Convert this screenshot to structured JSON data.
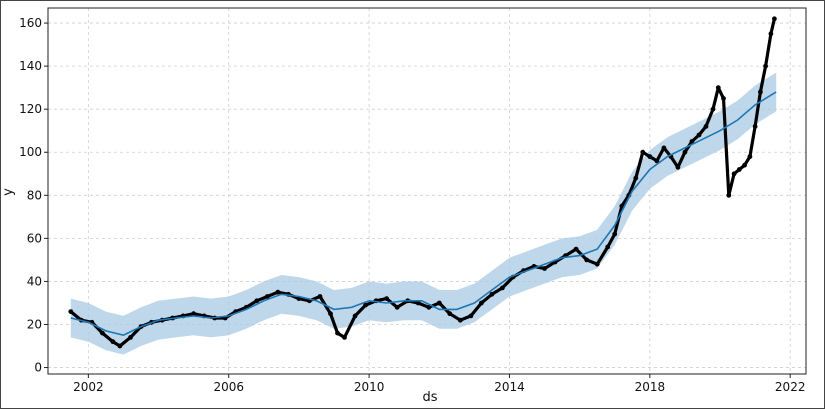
{
  "chart_data": {
    "type": "line",
    "title": "",
    "xlabel": "ds",
    "ylabel": "y",
    "xlim": [
      2000.85,
      2022.45
    ],
    "ylim": [
      -3,
      167
    ],
    "x_ticks": [
      2002,
      2006,
      2010,
      2014,
      2018,
      2022
    ],
    "x_tick_labels": [
      "2002",
      "2006",
      "2010",
      "2014",
      "2018",
      "2022"
    ],
    "y_ticks": [
      0,
      20,
      40,
      60,
      80,
      100,
      120,
      140,
      160
    ],
    "y_tick_labels": [
      "0",
      "20",
      "40",
      "60",
      "80",
      "100",
      "120",
      "140",
      "160"
    ],
    "grid": true,
    "legend": "none",
    "colors": {
      "forecast_line": "#1f77b4",
      "uncertainty_band": "#a9c9e3",
      "observed_points": "#000000",
      "grid": "#cfcfcf"
    },
    "series": [
      {
        "kind": "forecast",
        "x": [
          2001.5,
          2002.0,
          2002.5,
          2003.0,
          2003.5,
          2004.0,
          2004.5,
          2005.0,
          2005.5,
          2006.0,
          2006.5,
          2007.0,
          2007.5,
          2008.0,
          2008.5,
          2009.0,
          2009.5,
          2010.0,
          2010.5,
          2011.0,
          2011.5,
          2012.0,
          2012.5,
          2013.0,
          2013.5,
          2014.0,
          2014.5,
          2015.0,
          2015.5,
          2016.0,
          2016.5,
          2017.0,
          2017.5,
          2018.0,
          2018.5,
          2019.0,
          2019.5,
          2020.0,
          2020.5,
          2021.0,
          2021.5,
          2021.6
        ],
        "yhat": [
          23,
          21,
          17,
          15,
          19,
          22,
          23,
          24,
          23,
          24,
          27,
          31,
          34,
          33,
          31,
          27,
          28,
          31,
          30,
          31,
          31,
          27,
          27,
          30,
          36,
          42,
          45,
          48,
          51,
          52,
          55,
          66,
          82,
          92,
          98,
          102,
          106,
          110,
          115,
          122,
          127,
          128
        ],
        "lower": [
          14,
          12,
          8,
          6,
          10,
          13,
          14,
          15,
          14,
          15,
          18,
          22,
          25,
          24,
          22,
          18,
          19,
          22,
          21,
          22,
          22,
          18,
          18,
          21,
          27,
          33,
          36,
          39,
          42,
          43,
          46,
          57,
          73,
          83,
          89,
          93,
          97,
          101,
          106,
          113,
          118,
          119
        ],
        "upper": [
          32,
          30,
          26,
          24,
          28,
          31,
          32,
          33,
          32,
          33,
          36,
          40,
          43,
          42,
          40,
          36,
          37,
          40,
          39,
          40,
          40,
          36,
          36,
          39,
          45,
          51,
          54,
          57,
          60,
          61,
          64,
          75,
          91,
          101,
          107,
          111,
          115,
          119,
          124,
          131,
          136,
          137
        ]
      },
      {
        "kind": "observed",
        "x": [
          2001.5,
          2001.8,
          2002.1,
          2002.4,
          2002.7,
          2002.9,
          2003.2,
          2003.5,
          2003.8,
          2004.1,
          2004.4,
          2004.7,
          2005.0,
          2005.3,
          2005.6,
          2005.9,
          2006.2,
          2006.5,
          2006.8,
          2007.1,
          2007.4,
          2007.7,
          2008.0,
          2008.3,
          2008.6,
          2008.9,
          2009.1,
          2009.3,
          2009.6,
          2009.9,
          2010.2,
          2010.5,
          2010.8,
          2011.1,
          2011.4,
          2011.7,
          2012.0,
          2012.3,
          2012.6,
          2012.9,
          2013.2,
          2013.5,
          2013.8,
          2014.1,
          2014.4,
          2014.7,
          2015.0,
          2015.3,
          2015.6,
          2015.9,
          2016.2,
          2016.5,
          2016.8,
          2017.0,
          2017.2,
          2017.4,
          2017.6,
          2017.8,
          2018.0,
          2018.2,
          2018.4,
          2018.6,
          2018.8,
          2019.0,
          2019.2,
          2019.4,
          2019.6,
          2019.8,
          2019.95,
          2020.1,
          2020.25,
          2020.4,
          2020.55,
          2020.7,
          2020.85,
          2021.0,
          2021.15,
          2021.3,
          2021.45,
          2021.55
        ],
        "y": [
          26,
          22,
          21,
          16,
          12,
          10,
          14,
          19,
          21,
          22,
          23,
          24,
          25,
          24,
          23,
          23,
          26,
          28,
          31,
          33,
          35,
          34,
          32,
          31,
          33,
          25,
          16,
          14,
          24,
          29,
          31,
          32,
          28,
          31,
          30,
          28,
          30,
          25,
          22,
          24,
          30,
          34,
          37,
          42,
          45,
          47,
          46,
          49,
          52,
          55,
          50,
          48,
          56,
          62,
          75,
          80,
          88,
          100,
          98,
          96,
          102,
          98,
          93,
          100,
          105,
          108,
          112,
          120,
          130,
          125,
          80,
          90,
          92,
          94,
          98,
          112,
          128,
          140,
          155,
          162
        ]
      }
    ]
  }
}
